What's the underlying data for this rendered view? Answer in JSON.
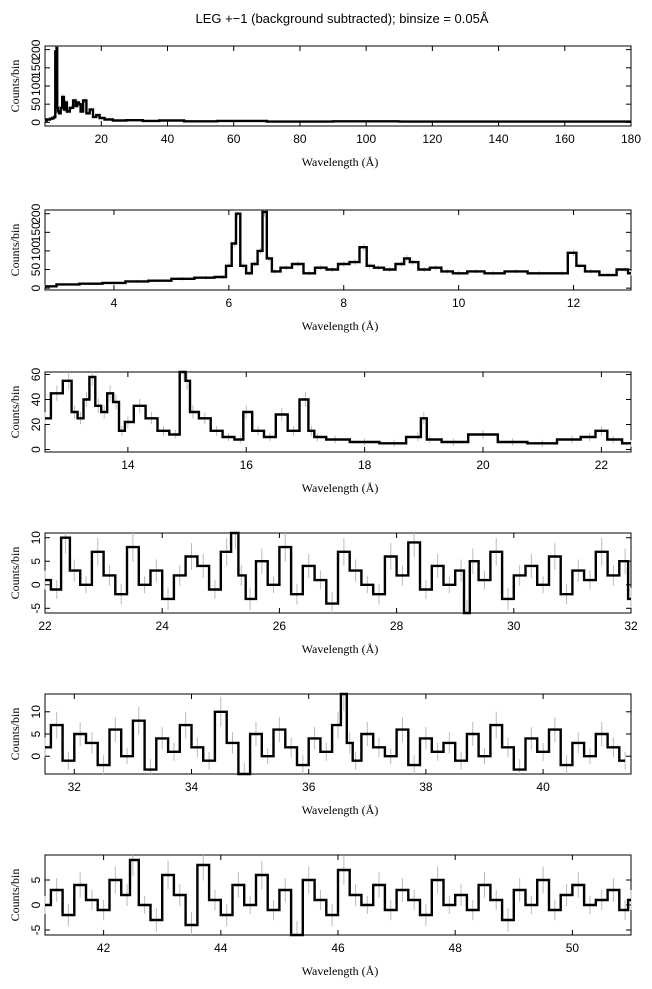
{
  "figure": {
    "title": "LEG +−1 (background subtracted); binsize = 0.05Å"
  },
  "colors": {
    "line": "#000000",
    "errorbar": "#bbbbbb",
    "frame": "#000000"
  },
  "chart_data": [
    {
      "type": "line",
      "step": true,
      "xlabel": "Wavelength (Å)",
      "ylabel": "Counts/bin",
      "xlim": [
        3,
        180
      ],
      "ylim": [
        -10,
        210
      ],
      "xticks": [
        20,
        40,
        60,
        80,
        100,
        120,
        140,
        160,
        180
      ],
      "yticks": [
        0,
        50,
        100,
        150,
        200
      ],
      "series": [
        {
          "x": [
            3,
            4,
            5,
            5.5,
            6,
            6.2,
            6.4,
            6.6,
            6.8,
            7,
            7.5,
            8,
            8.4,
            9,
            9.2,
            10,
            11,
            12,
            12.5,
            13,
            13.5,
            14,
            15,
            16,
            17,
            18,
            19,
            20,
            22,
            25,
            30,
            35,
            40,
            50,
            60,
            80,
            100,
            120,
            140,
            160,
            180
          ],
          "y": [
            5,
            8,
            10,
            12,
            15,
            195,
            60,
            205,
            40,
            30,
            25,
            40,
            70,
            35,
            55,
            30,
            40,
            60,
            45,
            55,
            50,
            30,
            60,
            25,
            35,
            15,
            20,
            12,
            8,
            5,
            6,
            4,
            5,
            3,
            4,
            2,
            3,
            2,
            2,
            2,
            2
          ]
        }
      ]
    },
    {
      "type": "line",
      "step": true,
      "xlabel": "Wavelength (Å)",
      "ylabel": "Counts/bin",
      "xlim": [
        2.8,
        13.0
      ],
      "ylim": [
        -5,
        210
      ],
      "xticks": [
        4,
        6,
        8,
        10,
        12
      ],
      "yticks": [
        0,
        50,
        100,
        150,
        200
      ],
      "series": [
        {
          "x": [
            2.8,
            3.2,
            3.6,
            4.0,
            4.4,
            4.8,
            5.2,
            5.6,
            5.9,
            6.0,
            6.1,
            6.15,
            6.25,
            6.35,
            6.45,
            6.55,
            6.62,
            6.7,
            6.8,
            7.0,
            7.2,
            7.4,
            7.6,
            7.8,
            8.0,
            8.2,
            8.35,
            8.45,
            8.6,
            8.8,
            9.0,
            9.1,
            9.2,
            9.4,
            9.6,
            9.8,
            10.0,
            10.3,
            10.6,
            11.0,
            11.4,
            11.8,
            12.0,
            12.1,
            12.3,
            12.6,
            12.9,
            13.0
          ],
          "y": [
            5,
            10,
            12,
            14,
            18,
            20,
            25,
            28,
            30,
            60,
            120,
            200,
            60,
            40,
            65,
            100,
            205,
            80,
            45,
            55,
            65,
            40,
            55,
            50,
            65,
            70,
            110,
            60,
            55,
            50,
            65,
            80,
            70,
            50,
            55,
            45,
            40,
            45,
            40,
            45,
            40,
            40,
            95,
            60,
            45,
            35,
            50,
            40
          ]
        }
      ]
    },
    {
      "type": "line",
      "step": true,
      "xlabel": "Wavelength (Å)",
      "ylabel": "Counts/bin",
      "xlim": [
        12.6,
        22.5
      ],
      "ylim": [
        -2,
        62
      ],
      "xticks": [
        14,
        16,
        18,
        20,
        22
      ],
      "yticks": [
        0,
        20,
        40,
        60
      ],
      "series": [
        {
          "x": [
            12.6,
            12.8,
            13.0,
            13.1,
            13.2,
            13.3,
            13.4,
            13.5,
            13.6,
            13.7,
            13.8,
            13.9,
            14.0,
            14.2,
            14.4,
            14.6,
            14.8,
            14.95,
            15.0,
            15.1,
            15.3,
            15.5,
            15.7,
            15.9,
            16.0,
            16.2,
            16.4,
            16.6,
            16.8,
            17.0,
            17.1,
            17.2,
            17.5,
            18.0,
            18.5,
            18.9,
            19.0,
            19.1,
            19.5,
            20.0,
            20.5,
            21.0,
            21.5,
            21.8,
            22.0,
            22.2,
            22.5
          ],
          "y": [
            25,
            45,
            55,
            30,
            25,
            40,
            58,
            35,
            30,
            45,
            38,
            15,
            22,
            35,
            25,
            15,
            12,
            62,
            55,
            30,
            25,
            15,
            10,
            8,
            30,
            15,
            10,
            28,
            15,
            40,
            15,
            10,
            8,
            6,
            5,
            10,
            25,
            8,
            6,
            12,
            6,
            5,
            8,
            10,
            15,
            8,
            5
          ]
        }
      ]
    },
    {
      "type": "line",
      "step": true,
      "xlabel": "Wavelength (Å)",
      "ylabel": "Counts/bin",
      "xlim": [
        22,
        32
      ],
      "ylim": [
        -6,
        11
      ],
      "xticks": [
        22,
        24,
        26,
        28,
        30,
        32
      ],
      "yticks": [
        -5,
        0,
        5,
        10
      ],
      "series": [
        {
          "x": [
            22.0,
            22.2,
            22.35,
            22.5,
            22.7,
            22.9,
            23.1,
            23.3,
            23.5,
            23.7,
            23.9,
            24.1,
            24.3,
            24.5,
            24.7,
            24.9,
            25.1,
            25.25,
            25.35,
            25.5,
            25.7,
            25.9,
            26.1,
            26.3,
            26.5,
            26.7,
            26.9,
            27.1,
            27.3,
            27.5,
            27.7,
            27.9,
            28.1,
            28.3,
            28.5,
            28.7,
            28.9,
            29.1,
            29.2,
            29.3,
            29.5,
            29.7,
            29.9,
            30.1,
            30.3,
            30.5,
            30.7,
            30.9,
            31.1,
            31.3,
            31.5,
            31.7,
            31.9,
            32.0
          ],
          "y": [
            1,
            -1,
            10,
            3,
            0,
            7,
            2,
            -2,
            8,
            0,
            3,
            -3,
            2,
            6,
            4,
            -1,
            7,
            11,
            2,
            -3,
            5,
            0,
            8,
            -2,
            4,
            1,
            -4,
            7,
            3,
            0,
            -2,
            6,
            2,
            9,
            -1,
            4,
            0,
            3,
            -6,
            5,
            1,
            7,
            -3,
            2,
            4,
            0,
            6,
            -2,
            3,
            1,
            7,
            2,
            5,
            -3
          ]
        }
      ]
    },
    {
      "type": "line",
      "step": true,
      "xlabel": "Wavelength (Å)",
      "ylabel": "Counts/bin",
      "xlim": [
        31.5,
        41.5
      ],
      "ylim": [
        -4,
        14
      ],
      "xticks": [
        32,
        34,
        36,
        38,
        40
      ],
      "yticks": [
        0,
        5,
        10
      ],
      "series": [
        {
          "x": [
            31.5,
            31.7,
            31.9,
            32.1,
            32.3,
            32.5,
            32.7,
            32.9,
            33.1,
            33.3,
            33.5,
            33.7,
            33.9,
            34.1,
            34.3,
            34.5,
            34.7,
            34.9,
            35.1,
            35.3,
            35.5,
            35.7,
            35.9,
            36.1,
            36.3,
            36.5,
            36.6,
            36.7,
            36.8,
            37.0,
            37.2,
            37.4,
            37.6,
            37.8,
            38.0,
            38.2,
            38.4,
            38.6,
            38.8,
            39.0,
            39.2,
            39.4,
            39.6,
            39.8,
            40.0,
            40.2,
            40.4,
            40.6,
            40.8,
            41.0,
            41.2,
            41.4
          ],
          "y": [
            2,
            7,
            -1,
            5,
            3,
            -2,
            6,
            0,
            8,
            -3,
            4,
            1,
            7,
            2,
            -1,
            10,
            3,
            -4,
            5,
            0,
            6,
            2,
            -2,
            4,
            1,
            7,
            14,
            3,
            -1,
            5,
            2,
            0,
            6,
            -2,
            4,
            1,
            3,
            -1,
            5,
            0,
            7,
            2,
            -3,
            4,
            1,
            6,
            -2,
            3,
            0,
            5,
            2,
            -1
          ]
        }
      ]
    },
    {
      "type": "line",
      "step": true,
      "xlabel": "Wavelength (Å)",
      "ylabel": "Counts/bin",
      "xlim": [
        41,
        51
      ],
      "ylim": [
        -6,
        10
      ],
      "xticks": [
        42,
        44,
        46,
        48,
        50
      ],
      "yticks": [
        -5,
        0,
        5
      ],
      "series": [
        {
          "x": [
            41.0,
            41.2,
            41.4,
            41.6,
            41.8,
            42.0,
            42.2,
            42.4,
            42.5,
            42.7,
            42.9,
            43.1,
            43.3,
            43.5,
            43.7,
            43.9,
            44.1,
            44.3,
            44.5,
            44.7,
            44.9,
            45.1,
            45.3,
            45.5,
            45.7,
            45.9,
            46.1,
            46.3,
            46.5,
            46.7,
            46.9,
            47.1,
            47.3,
            47.5,
            47.7,
            47.9,
            48.1,
            48.3,
            48.5,
            48.7,
            48.9,
            49.1,
            49.3,
            49.5,
            49.7,
            49.9,
            50.1,
            50.3,
            50.5,
            50.7,
            50.9,
            51.0
          ],
          "y": [
            0,
            3,
            -2,
            4,
            1,
            -1,
            5,
            2,
            9,
            0,
            -3,
            6,
            2,
            -4,
            8,
            1,
            -2,
            4,
            0,
            6,
            -1,
            3,
            -6,
            5,
            1,
            -2,
            7,
            2,
            0,
            4,
            -1,
            3,
            1,
            -2,
            5,
            0,
            2,
            -1,
            4,
            1,
            -3,
            3,
            0,
            5,
            -1,
            2,
            4,
            0,
            1,
            3,
            -1,
            1
          ]
        }
      ]
    }
  ]
}
